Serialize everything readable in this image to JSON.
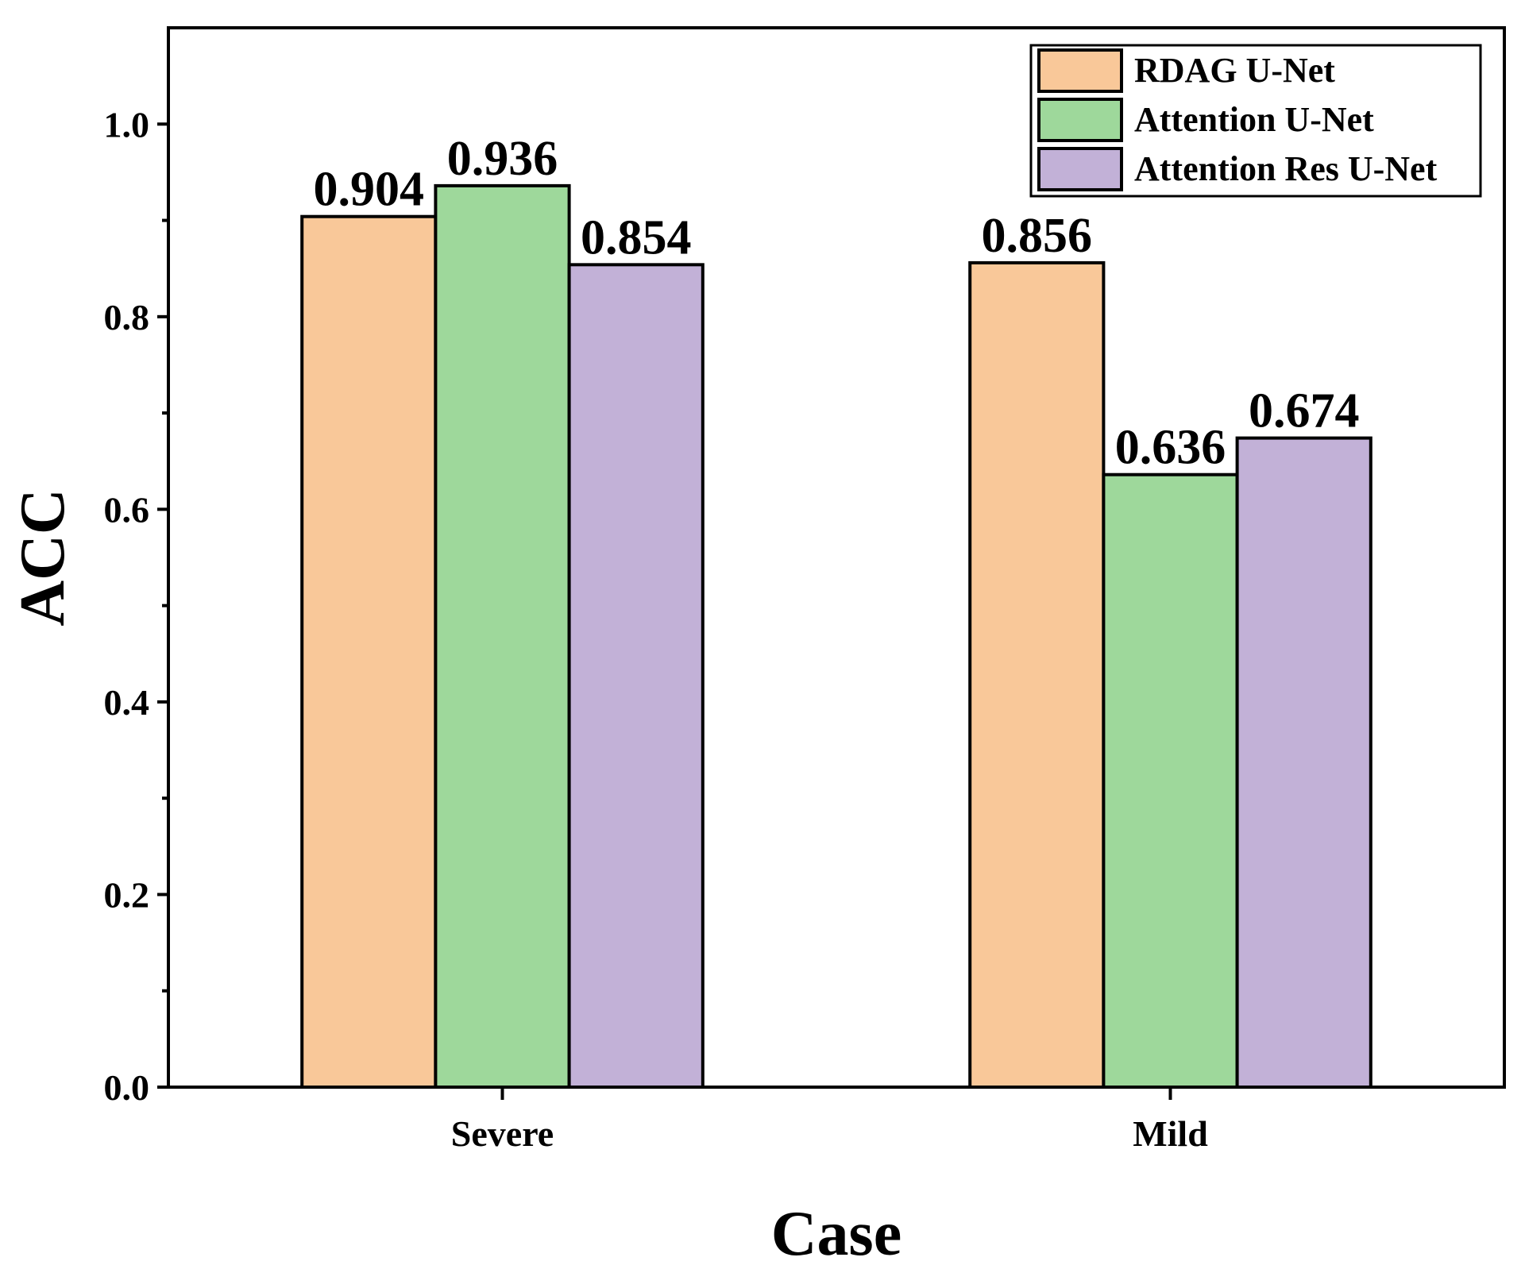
{
  "chart_data": {
    "type": "bar",
    "title": "",
    "xlabel": "Case",
    "ylabel": "ACC",
    "categories": [
      "Severe",
      "Mild"
    ],
    "series": [
      {
        "name": "RDAG U-Net",
        "values": [
          0.904,
          0.856
        ],
        "labels": [
          "0.904",
          "0.856"
        ],
        "color": "#F9C899"
      },
      {
        "name": "Attention U-Net",
        "values": [
          0.936,
          0.636
        ],
        "labels": [
          "0.936",
          "0.636"
        ],
        "color": "#9ED89B"
      },
      {
        "name": "Attention Res U-Net",
        "values": [
          0.854,
          0.674
        ],
        "labels": [
          "0.854",
          "0.674"
        ],
        "color": "#C2B1D7"
      }
    ],
    "ylim": [
      0,
      1.1
    ],
    "yticks": [
      0.0,
      0.2,
      0.4,
      0.6,
      0.8,
      1.0
    ],
    "ytick_labels": [
      "0.0",
      "0.2",
      "0.4",
      "0.6",
      "0.8",
      "1.0"
    ],
    "grid": false,
    "legend_position": "top-right"
  }
}
